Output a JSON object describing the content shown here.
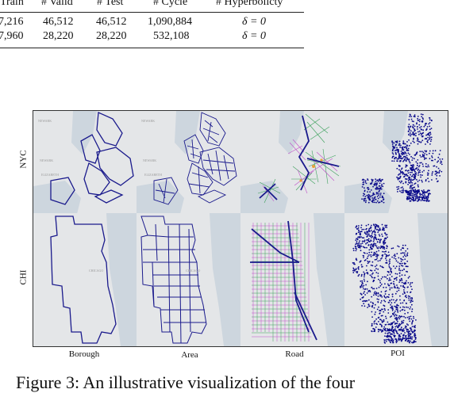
{
  "table": {
    "headers": [
      "Train",
      "# Valid",
      "# Test",
      "# Cycle",
      "# Hyperbolicty"
    ],
    "rows": [
      [
        "7,216",
        "46,512",
        "46,512",
        "1,090,884",
        "δ = 0"
      ],
      [
        "7,960",
        "28,220",
        "28,220",
        "532,108",
        "δ = 0"
      ]
    ]
  },
  "figure": {
    "row_labels": [
      "NYC",
      "CHI"
    ],
    "column_labels": [
      "Borough",
      "Area",
      "Road",
      "POI"
    ],
    "map_text": {
      "newark": "NEWARK",
      "elizabeth": "ELIZABETH",
      "chicago": "CHICAGO"
    },
    "colors": {
      "boundary": "#1a1a8c",
      "water": "#c9d4dd",
      "land": "#e3e5e7",
      "road_green": "#3aa05a",
      "road_magenta": "#c04fc8",
      "poi": "#0a0a8a"
    }
  },
  "caption": "Figure 3: An illustrative visualization of the four"
}
